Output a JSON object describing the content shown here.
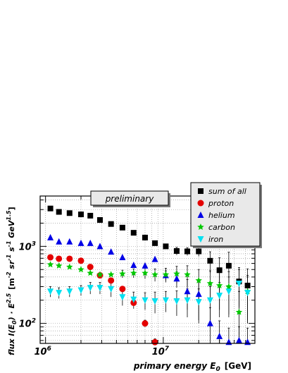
{
  "chart_data": {
    "type": "scatter",
    "xscale": "log",
    "yscale": "log",
    "xlim": [
      900000,
      60000000
    ],
    "ylim": [
      55,
      4500
    ],
    "grid": true,
    "annotation": "preliminary",
    "legend_position": "top-right",
    "xlabel": {
      "main": "primary energy E",
      "sub": "0",
      "unit": "[GeV]"
    },
    "ylabel": {
      "main": "flux I(E",
      "sub": "0",
      "mid": ") · E",
      "sup": "2.5",
      "unit": "[m",
      "unit_sup1": "-2",
      "unit_mid1": " sr",
      "unit_sup2": "-1",
      "unit_mid2": " s",
      "unit_sup3": "-1",
      "unit_mid3": " GeV",
      "unit_sup4": "1.5",
      "unit_end": "]"
    },
    "x_ticks": [
      {
        "value": 1000000,
        "base": "10",
        "exp": "6"
      },
      {
        "value": 10000000,
        "base": "10",
        "exp": "7"
      }
    ],
    "y_ticks": [
      {
        "value": 100,
        "base": "10",
        "exp": "2"
      },
      {
        "value": 1000,
        "base": "10",
        "exp": "3"
      }
    ],
    "series": [
      {
        "name": "sum of all",
        "marker": "square",
        "color": "#000000",
        "points": [
          [
            1100000,
            3100,
            0
          ],
          [
            1300000,
            2800,
            0
          ],
          [
            1600000,
            2700,
            0
          ],
          [
            2000000,
            2600,
            0
          ],
          [
            2400000,
            2500,
            0
          ],
          [
            2900000,
            2200,
            0
          ],
          [
            3600000,
            1950,
            0
          ],
          [
            4500000,
            1750,
            0
          ],
          [
            5600000,
            1500,
            0
          ],
          [
            7000000,
            1300,
            0
          ],
          [
            8500000,
            1100,
            0
          ],
          [
            10500000,
            1000,
            0
          ],
          [
            13000000,
            870,
            100
          ],
          [
            16000000,
            860,
            100
          ],
          [
            20000000,
            860,
            120
          ],
          [
            25000000,
            650,
            200
          ],
          [
            30000000,
            490,
            220
          ],
          [
            36000000,
            560,
            280
          ],
          [
            44000000,
            350,
            180
          ],
          [
            52000000,
            310,
            200
          ]
        ]
      },
      {
        "name": "proton",
        "marker": "circle",
        "color": "#e40000",
        "points": [
          [
            1100000,
            720,
            0
          ],
          [
            1300000,
            690,
            0
          ],
          [
            1600000,
            690,
            0
          ],
          [
            2000000,
            650,
            0
          ],
          [
            2400000,
            540,
            0
          ],
          [
            2900000,
            420,
            0
          ],
          [
            3600000,
            360,
            0
          ],
          [
            4500000,
            280,
            0
          ],
          [
            5600000,
            185,
            0
          ],
          [
            7000000,
            100,
            10
          ],
          [
            8500000,
            57,
            6
          ]
        ]
      },
      {
        "name": "helium",
        "marker": "triangle",
        "color": "#0000e6",
        "points": [
          [
            1100000,
            1300,
            0
          ],
          [
            1300000,
            1150,
            0
          ],
          [
            1600000,
            1150,
            0
          ],
          [
            2000000,
            1100,
            0
          ],
          [
            2400000,
            1100,
            0
          ],
          [
            2900000,
            1000,
            0
          ],
          [
            3600000,
            850,
            0
          ],
          [
            4500000,
            720,
            0
          ],
          [
            5600000,
            570,
            0
          ],
          [
            7000000,
            560,
            0
          ],
          [
            8500000,
            680,
            0
          ],
          [
            10500000,
            420,
            60
          ],
          [
            13000000,
            380,
            90
          ],
          [
            16000000,
            260,
            110
          ],
          [
            20000000,
            240,
            130
          ],
          [
            25000000,
            100,
            60
          ],
          [
            30000000,
            68,
            40
          ],
          [
            36000000,
            57,
            30
          ],
          [
            44000000,
            60,
            30
          ],
          [
            52000000,
            57,
            30
          ]
        ]
      },
      {
        "name": "carbon",
        "marker": "star",
        "color": "#00c800",
        "points": [
          [
            1100000,
            580,
            0
          ],
          [
            1300000,
            560,
            0
          ],
          [
            1600000,
            540,
            0
          ],
          [
            2000000,
            500,
            0
          ],
          [
            2400000,
            450,
            0
          ],
          [
            2900000,
            430,
            0
          ],
          [
            3600000,
            430,
            0
          ],
          [
            4500000,
            440,
            50
          ],
          [
            5600000,
            450,
            60
          ],
          [
            7000000,
            450,
            70
          ],
          [
            8500000,
            430,
            80
          ],
          [
            10500000,
            430,
            90
          ],
          [
            13000000,
            440,
            110
          ],
          [
            16000000,
            430,
            130
          ],
          [
            20000000,
            360,
            140
          ],
          [
            25000000,
            330,
            150
          ],
          [
            30000000,
            310,
            160
          ],
          [
            36000000,
            300,
            170
          ],
          [
            44000000,
            140,
            120
          ],
          [
            52000000,
            260,
            160
          ]
        ]
      },
      {
        "name": "iron",
        "marker": "inverted-triangle",
        "color": "#00e0f0",
        "points": [
          [
            1100000,
            260,
            40
          ],
          [
            1300000,
            250,
            40
          ],
          [
            1600000,
            260,
            40
          ],
          [
            2000000,
            270,
            40
          ],
          [
            2400000,
            290,
            50
          ],
          [
            2900000,
            290,
            50
          ],
          [
            3600000,
            280,
            60
          ],
          [
            4500000,
            220,
            50
          ],
          [
            5600000,
            205,
            50
          ],
          [
            7000000,
            200,
            50
          ],
          [
            8500000,
            195,
            60
          ],
          [
            10500000,
            200,
            60
          ],
          [
            13000000,
            195,
            70
          ],
          [
            16000000,
            200,
            80
          ],
          [
            20000000,
            190,
            90
          ],
          [
            25000000,
            200,
            100
          ],
          [
            30000000,
            230,
            110
          ],
          [
            36000000,
            260,
            140
          ],
          [
            44000000,
            330,
            170
          ],
          [
            52000000,
            250,
            150
          ]
        ]
      }
    ]
  }
}
